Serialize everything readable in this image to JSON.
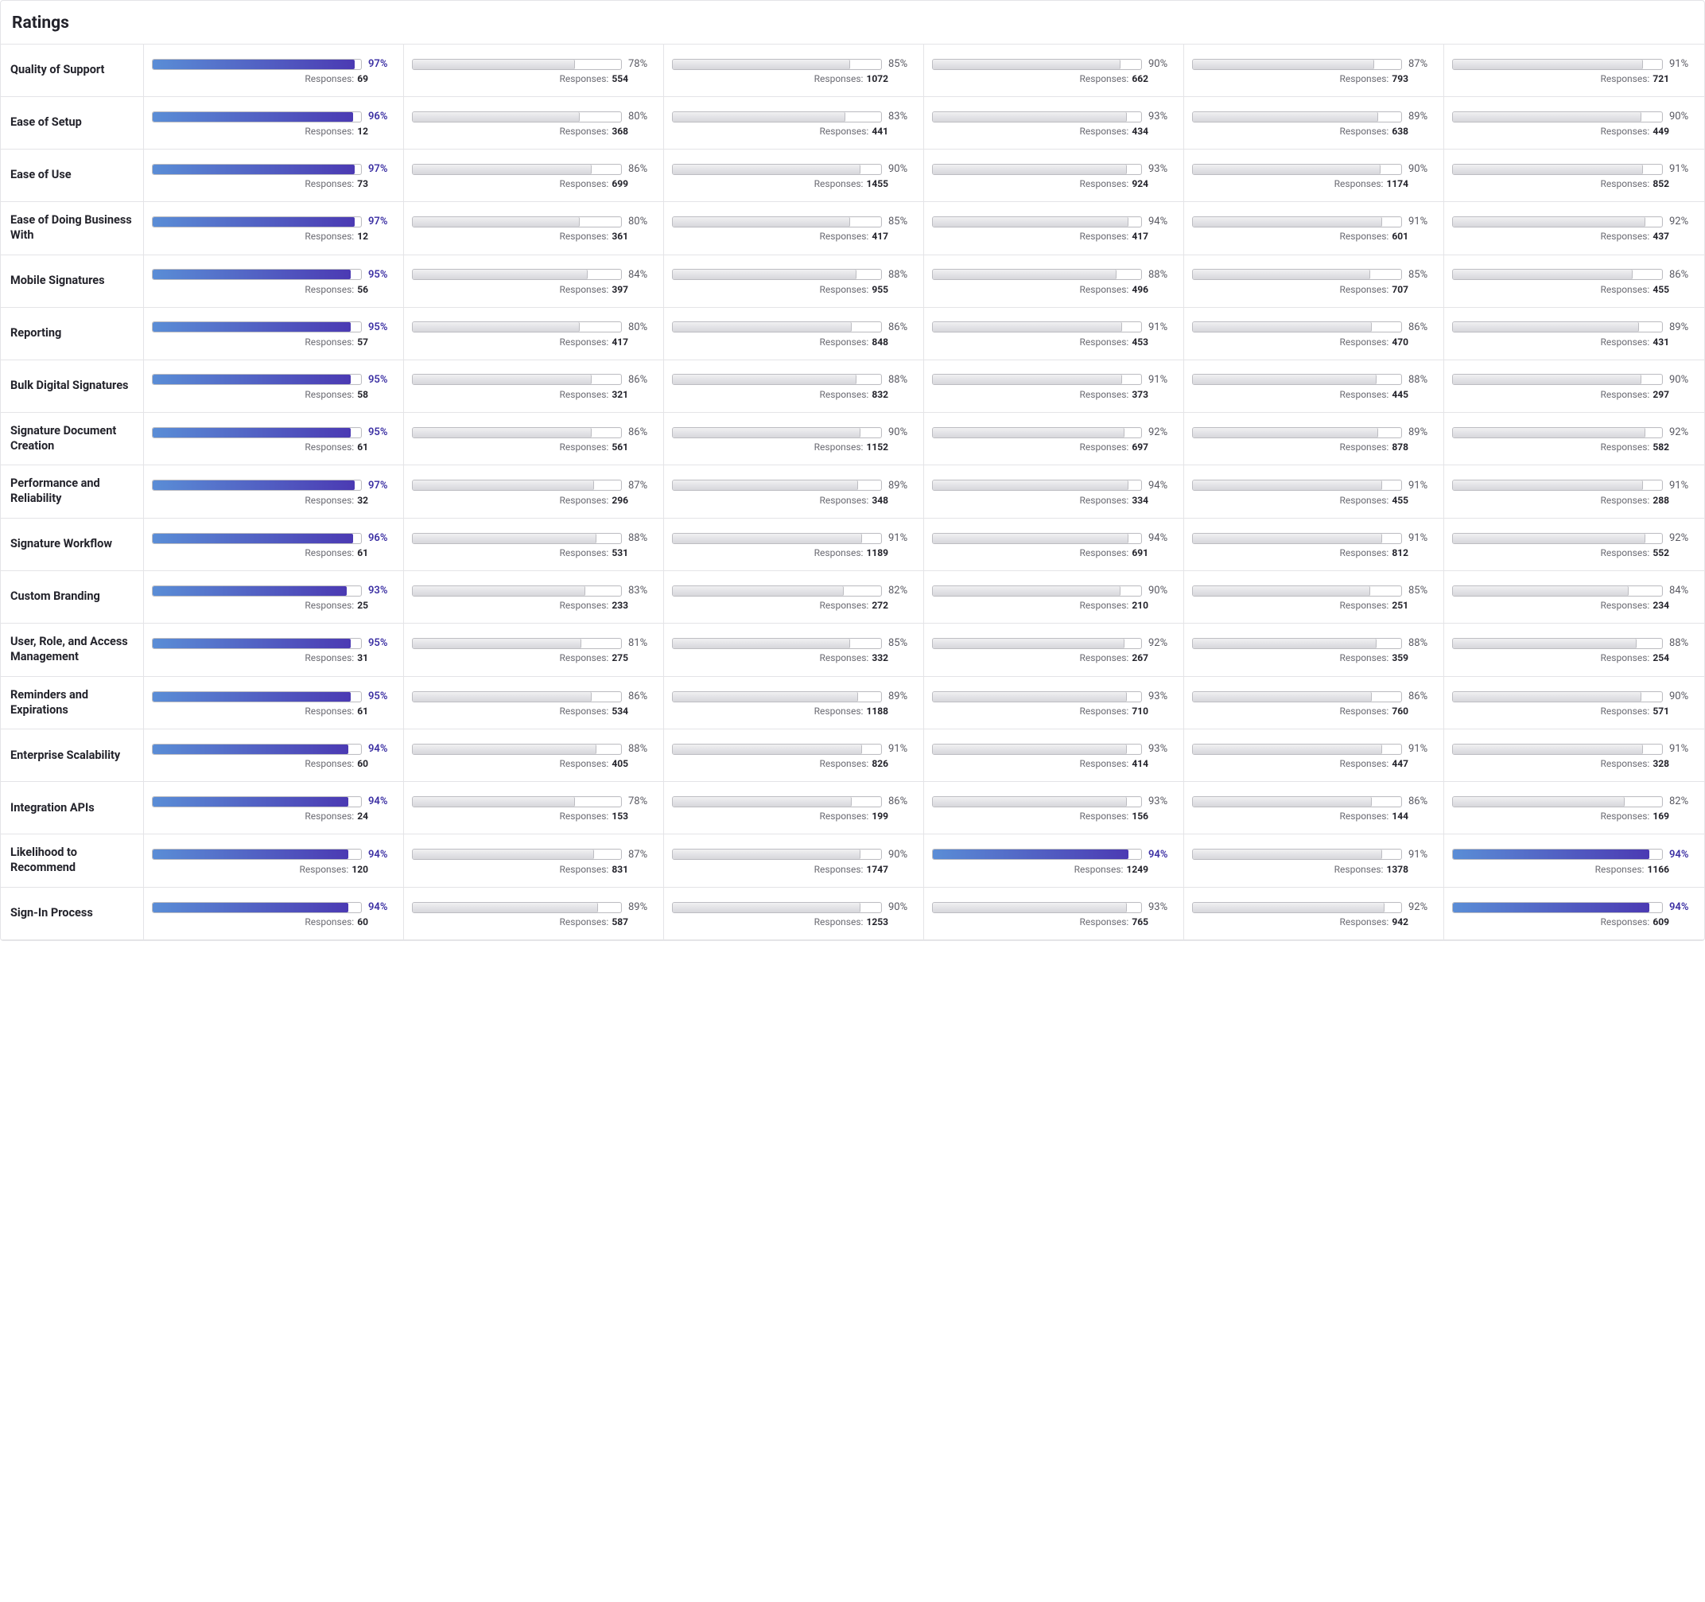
{
  "title": "Ratings",
  "responsesLabel": "Responses:",
  "highlightColorStart": "#5a8dd6",
  "highlightColorEnd": "#4b3ab3",
  "greyFillTop": "#f0f0f2",
  "greyFillBottom": "#d7d7db",
  "borderColor": "#e4e4e7",
  "highlightPctColor": "#3b2fa3",
  "pctColor": "#5a5a63",
  "rows": [
    {
      "label": "Quality of Support",
      "cells": [
        {
          "pct": 97,
          "resp": 69,
          "hl": true
        },
        {
          "pct": 78,
          "resp": 554
        },
        {
          "pct": 85,
          "resp": 1072
        },
        {
          "pct": 90,
          "resp": 662
        },
        {
          "pct": 87,
          "resp": 793
        },
        {
          "pct": 91,
          "resp": 721
        }
      ]
    },
    {
      "label": "Ease of Setup",
      "cells": [
        {
          "pct": 96,
          "resp": 12,
          "hl": true
        },
        {
          "pct": 80,
          "resp": 368
        },
        {
          "pct": 83,
          "resp": 441
        },
        {
          "pct": 93,
          "resp": 434
        },
        {
          "pct": 89,
          "resp": 638
        },
        {
          "pct": 90,
          "resp": 449
        }
      ]
    },
    {
      "label": "Ease of Use",
      "cells": [
        {
          "pct": 97,
          "resp": 73,
          "hl": true
        },
        {
          "pct": 86,
          "resp": 699
        },
        {
          "pct": 90,
          "resp": 1455
        },
        {
          "pct": 93,
          "resp": 924
        },
        {
          "pct": 90,
          "resp": 1174
        },
        {
          "pct": 91,
          "resp": 852
        }
      ]
    },
    {
      "label": "Ease of Doing Business With",
      "cells": [
        {
          "pct": 97,
          "resp": 12,
          "hl": true
        },
        {
          "pct": 80,
          "resp": 361
        },
        {
          "pct": 85,
          "resp": 417
        },
        {
          "pct": 94,
          "resp": 417
        },
        {
          "pct": 91,
          "resp": 601
        },
        {
          "pct": 92,
          "resp": 437
        }
      ]
    },
    {
      "label": "Mobile Signatures",
      "cells": [
        {
          "pct": 95,
          "resp": 56,
          "hl": true
        },
        {
          "pct": 84,
          "resp": 397
        },
        {
          "pct": 88,
          "resp": 955
        },
        {
          "pct": 88,
          "resp": 496
        },
        {
          "pct": 85,
          "resp": 707
        },
        {
          "pct": 86,
          "resp": 455
        }
      ]
    },
    {
      "label": "Reporting",
      "cells": [
        {
          "pct": 95,
          "resp": 57,
          "hl": true
        },
        {
          "pct": 80,
          "resp": 417
        },
        {
          "pct": 86,
          "resp": 848
        },
        {
          "pct": 91,
          "resp": 453
        },
        {
          "pct": 86,
          "resp": 470
        },
        {
          "pct": 89,
          "resp": 431
        }
      ]
    },
    {
      "label": "Bulk Digital Signatures",
      "cells": [
        {
          "pct": 95,
          "resp": 58,
          "hl": true
        },
        {
          "pct": 86,
          "resp": 321
        },
        {
          "pct": 88,
          "resp": 832
        },
        {
          "pct": 91,
          "resp": 373
        },
        {
          "pct": 88,
          "resp": 445
        },
        {
          "pct": 90,
          "resp": 297
        }
      ]
    },
    {
      "label": "Signature Document Creation",
      "cells": [
        {
          "pct": 95,
          "resp": 61,
          "hl": true
        },
        {
          "pct": 86,
          "resp": 561
        },
        {
          "pct": 90,
          "resp": 1152
        },
        {
          "pct": 92,
          "resp": 697
        },
        {
          "pct": 89,
          "resp": 878
        },
        {
          "pct": 92,
          "resp": 582
        }
      ]
    },
    {
      "label": "Performance and Reliability",
      "cells": [
        {
          "pct": 97,
          "resp": 32,
          "hl": true
        },
        {
          "pct": 87,
          "resp": 296
        },
        {
          "pct": 89,
          "resp": 348
        },
        {
          "pct": 94,
          "resp": 334
        },
        {
          "pct": 91,
          "resp": 455
        },
        {
          "pct": 91,
          "resp": 288
        }
      ]
    },
    {
      "label": "Signature Workflow",
      "cells": [
        {
          "pct": 96,
          "resp": 61,
          "hl": true
        },
        {
          "pct": 88,
          "resp": 531
        },
        {
          "pct": 91,
          "resp": 1189
        },
        {
          "pct": 94,
          "resp": 691
        },
        {
          "pct": 91,
          "resp": 812
        },
        {
          "pct": 92,
          "resp": 552
        }
      ]
    },
    {
      "label": "Custom Branding",
      "cells": [
        {
          "pct": 93,
          "resp": 25,
          "hl": true
        },
        {
          "pct": 83,
          "resp": 233
        },
        {
          "pct": 82,
          "resp": 272
        },
        {
          "pct": 90,
          "resp": 210
        },
        {
          "pct": 85,
          "resp": 251
        },
        {
          "pct": 84,
          "resp": 234
        }
      ]
    },
    {
      "label": "User, Role, and Access Management",
      "cells": [
        {
          "pct": 95,
          "resp": 31,
          "hl": true
        },
        {
          "pct": 81,
          "resp": 275
        },
        {
          "pct": 85,
          "resp": 332
        },
        {
          "pct": 92,
          "resp": 267
        },
        {
          "pct": 88,
          "resp": 359
        },
        {
          "pct": 88,
          "resp": 254
        }
      ]
    },
    {
      "label": "Reminders and Expirations",
      "cells": [
        {
          "pct": 95,
          "resp": 61,
          "hl": true
        },
        {
          "pct": 86,
          "resp": 534
        },
        {
          "pct": 89,
          "resp": 1188
        },
        {
          "pct": 93,
          "resp": 710
        },
        {
          "pct": 86,
          "resp": 760
        },
        {
          "pct": 90,
          "resp": 571
        }
      ]
    },
    {
      "label": "Enterprise Scalability",
      "cells": [
        {
          "pct": 94,
          "resp": 60,
          "hl": true
        },
        {
          "pct": 88,
          "resp": 405
        },
        {
          "pct": 91,
          "resp": 826
        },
        {
          "pct": 93,
          "resp": 414
        },
        {
          "pct": 91,
          "resp": 447
        },
        {
          "pct": 91,
          "resp": 328
        }
      ]
    },
    {
      "label": "Integration APIs",
      "cells": [
        {
          "pct": 94,
          "resp": 24,
          "hl": true
        },
        {
          "pct": 78,
          "resp": 153
        },
        {
          "pct": 86,
          "resp": 199
        },
        {
          "pct": 93,
          "resp": 156
        },
        {
          "pct": 86,
          "resp": 144
        },
        {
          "pct": 82,
          "resp": 169
        }
      ]
    },
    {
      "label": "Likelihood to Recommend",
      "cells": [
        {
          "pct": 94,
          "resp": 120,
          "hl": true
        },
        {
          "pct": 87,
          "resp": 831
        },
        {
          "pct": 90,
          "resp": 1747
        },
        {
          "pct": 94,
          "resp": 1249,
          "hl": true
        },
        {
          "pct": 91,
          "resp": 1378
        },
        {
          "pct": 94,
          "resp": 1166,
          "hl": true
        }
      ]
    },
    {
      "label": "Sign-In Process",
      "cells": [
        {
          "pct": 94,
          "resp": 60,
          "hl": true
        },
        {
          "pct": 89,
          "resp": 587
        },
        {
          "pct": 90,
          "resp": 1253
        },
        {
          "pct": 93,
          "resp": 765
        },
        {
          "pct": 92,
          "resp": 942
        },
        {
          "pct": 94,
          "resp": 609,
          "hl": true
        }
      ]
    }
  ]
}
